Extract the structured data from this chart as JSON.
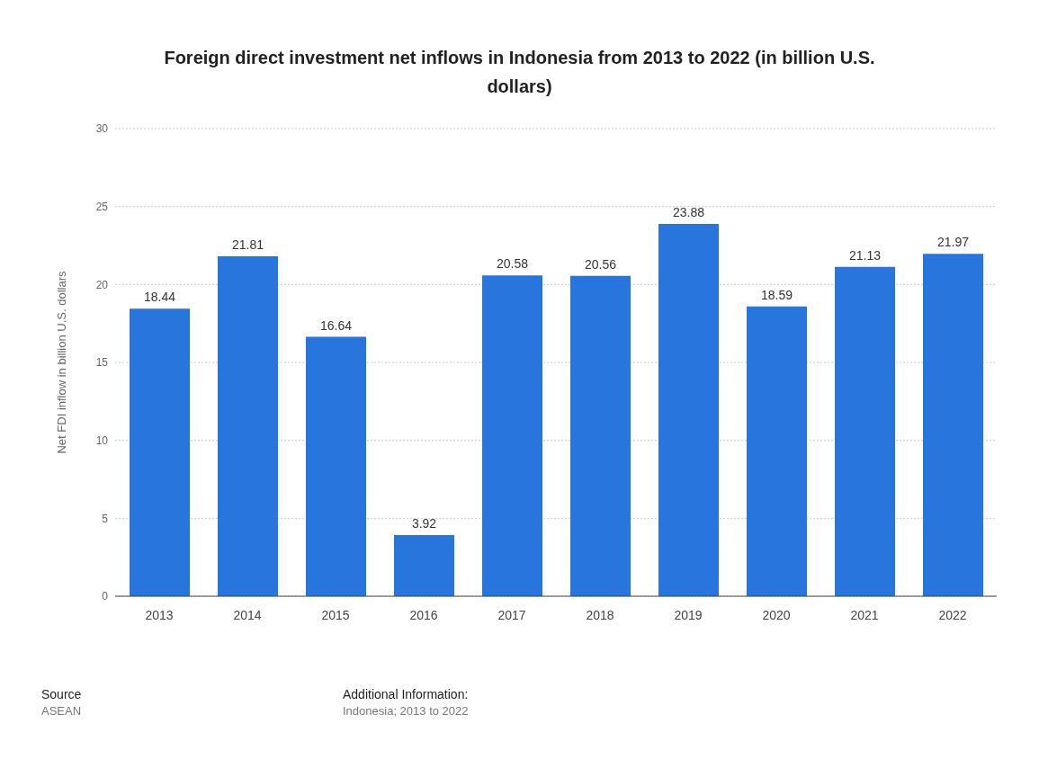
{
  "chart_data": {
    "type": "bar",
    "title": "Foreign direct investment net inflows in Indonesia from 2013 to 2022 (in billion U.S. dollars)",
    "ylabel": "Net FDI inflow in billion U.S. dollars",
    "categories": [
      "2013",
      "2014",
      "2015",
      "2016",
      "2017",
      "2018",
      "2019",
      "2020",
      "2021",
      "2022"
    ],
    "values": [
      18.44,
      21.81,
      16.64,
      3.92,
      20.58,
      20.56,
      23.88,
      18.59,
      21.13,
      21.97
    ],
    "color": "#2775dd",
    "ylim": [
      0,
      30
    ],
    "yticks": [
      0,
      5,
      10,
      15,
      20,
      25,
      30
    ],
    "grid": "y",
    "data_labels": true,
    "annotations": [
      "Source",
      "ASEAN",
      "Additional Information:",
      "Indonesia; 2013 to 2022"
    ]
  }
}
